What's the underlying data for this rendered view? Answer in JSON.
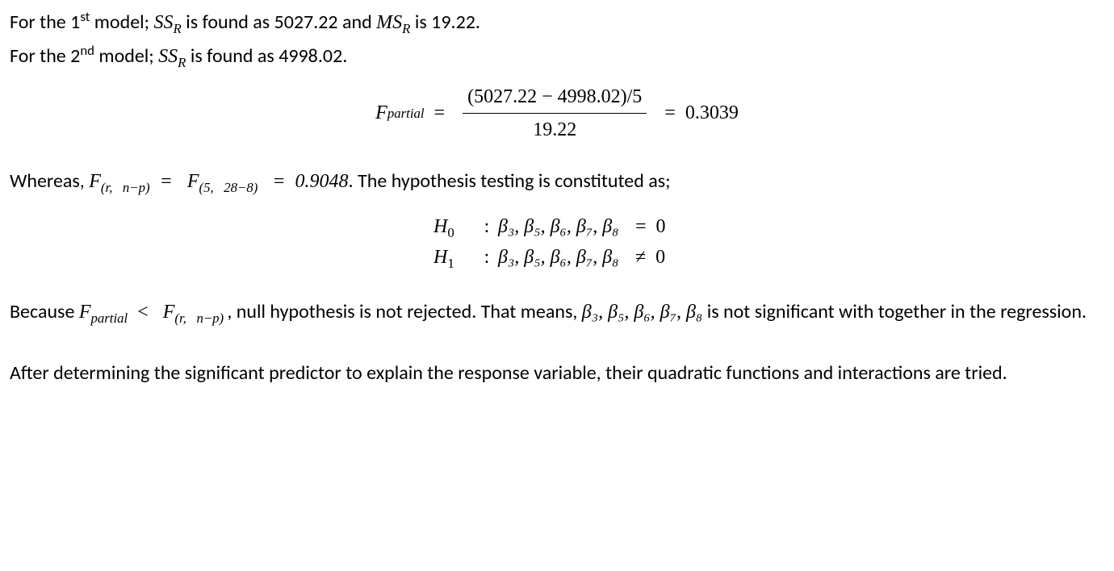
{
  "line1": {
    "prefix": "For the 1",
    "sup": "st",
    "mid1": " model; ",
    "ssr": "SS",
    "ssr_sub": "R",
    "mid2": " is found as 5027.22 and ",
    "msr": "MS",
    "msr_sub": "R",
    "tail": " is 19.22."
  },
  "line2": {
    "prefix": "For the 2",
    "sup": "nd",
    "mid1": " model; ",
    "ssr": "SS",
    "ssr_sub": "R",
    "tail": " is found as 4998.02."
  },
  "eq_partial": {
    "F": "F",
    "sub": "partial",
    "eq1_spaced": "  =  ",
    "numerator": "(5027.22 − 4998.02)/5",
    "denominator": "19.22",
    "eq2_spaced": "  =  0.3039"
  },
  "whereas": {
    "pre": "Whereas, ",
    "F1": "F",
    "sub1": "(r,   n−p)",
    "eq1_spaced": "  =   ",
    "F2": "F",
    "sub2": "(5,   28−8)",
    "eq2_spaced": "   =  0.9048",
    "tail": ". The hypothesis testing is constituted as;"
  },
  "hyp": {
    "H0_l": "H",
    "H0_s": "0",
    "colon": ":",
    "betas": "β₃, β₅, β₆, β₇, β₈",
    "r0": "=  0",
    "H1_l": "H",
    "H1_s": "1",
    "r1": "≠  0"
  },
  "conc": {
    "t1": "Because ",
    "F1": "F",
    "s1": "partial",
    "spacer1": "  ",
    "lt": "<",
    "spacer2": "   ",
    "F2": "F",
    "s2": "(r,   n−p) ",
    "comma": ",",
    "t2": " null hypothesis is not rejected. That means, ",
    "betas": "β₃, β₅, β₆, β₇, β₈",
    "t3": " is not significant with together in the regression."
  },
  "final": "After determining the significant predictor to explain the response variable, their quadratic functions and interactions are tried."
}
